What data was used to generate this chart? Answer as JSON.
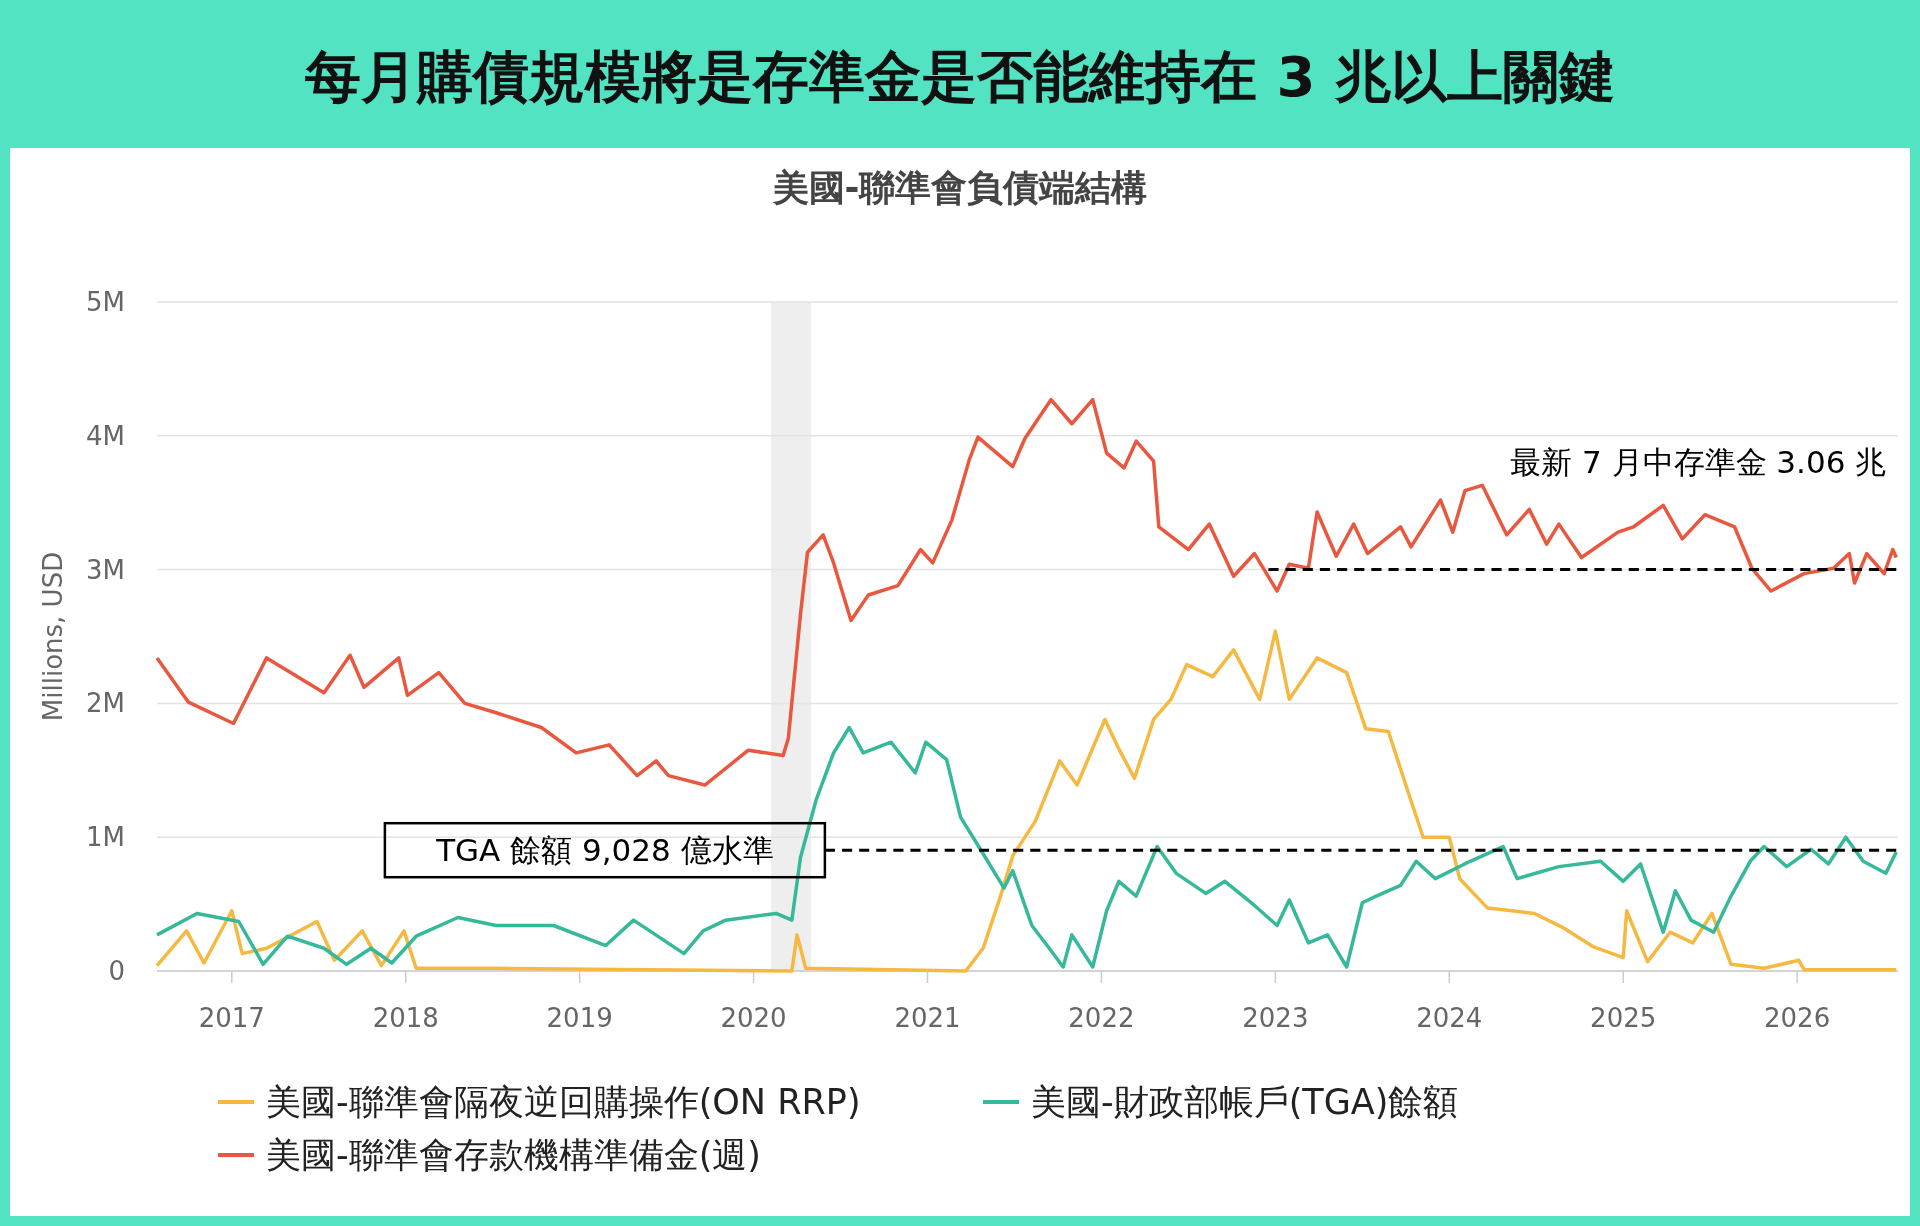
{
  "chart_data": {
    "type": "line",
    "title": "每月購債規模將是存準金是否能維持在 3 兆以上關鍵",
    "subtitle": "美國-聯準會負債端結構",
    "ylabel": "Millions, USD",
    "xlim": [
      2016.57,
      2026.58
    ],
    "xticks": [
      2017,
      2018,
      2019,
      2020,
      2021,
      2022,
      2023,
      2024,
      2025,
      2026
    ],
    "ylim": [
      0,
      5000000
    ],
    "yticks": [
      0,
      {
        "value": 1000000,
        "label": "1M"
      },
      {
        "value": 2000000,
        "label": "2M"
      },
      {
        "value": 3000000,
        "label": "3M"
      },
      {
        "value": 4000000,
        "label": "4M"
      },
      {
        "value": 5000000,
        "label": "5M"
      }
    ],
    "grid": "y",
    "legend": "bottom",
    "line_style": "solid",
    "bands": [
      {
        "axis": "x",
        "from": 2020.1,
        "to": 2020.33,
        "color": "#eeeeee"
      }
    ],
    "annotations": [
      {
        "text": "TGA 餘額 9,028 億水準",
        "x": 2020.41,
        "y": 902800
      },
      {
        "text": "最新 7 月中存準金 3.06 兆",
        "x": 2026.57,
        "y": 3000000
      }
    ],
    "series": [
      {
        "name": "美國-聯準會隔夜逆回購操作(ON RRP)",
        "color": "#f5b942",
        "x": [
          2016.57,
          2016.74,
          2016.84,
          2017.0,
          2017.06,
          2017.2,
          2017.49,
          2017.59,
          2017.75,
          2017.86,
          2017.99,
          2018.06,
          2018.52,
          2020.22,
          2020.25,
          2020.3,
          2021.22,
          2021.32,
          2021.42,
          2021.49,
          2021.62,
          2021.76,
          2021.86,
          2022.02,
          2022.1,
          2022.19,
          2022.3,
          2022.4,
          2022.49,
          2022.64,
          2022.76,
          2022.91,
          2023.0,
          2023.08,
          2023.24,
          2023.41,
          2023.52,
          2023.65,
          2023.75,
          2023.85,
          2024.0,
          2024.06,
          2024.22,
          2024.36,
          2024.49,
          2024.66,
          2024.83,
          2025.0,
          2025.02,
          2025.14,
          2025.27,
          2025.4,
          2025.51,
          2025.62,
          2025.81,
          2026.01,
          2026.04,
          2026.57
        ],
        "values": [
          40000,
          300000,
          60000,
          450000,
          130000,
          170000,
          370000,
          80000,
          300000,
          40000,
          300000,
          20000,
          20000,
          0,
          270000,
          20000,
          0,
          170000,
          560000,
          860000,
          1120000,
          1570000,
          1390000,
          1880000,
          1660000,
          1440000,
          1880000,
          2030000,
          2290000,
          2200000,
          2400000,
          2030000,
          2540000,
          2030000,
          2340000,
          2230000,
          1810000,
          1790000,
          1390000,
          1000000,
          1000000,
          690000,
          470000,
          450000,
          430000,
          320000,
          180000,
          100000,
          450000,
          70000,
          290000,
          210000,
          430000,
          50000,
          20000,
          80000,
          10000,
          10000
        ]
      },
      {
        "name": "美國-財政部帳戶(TGA)餘額",
        "color": "#36b89a",
        "x": [
          2016.57,
          2016.8,
          2017.04,
          2017.18,
          2017.32,
          2017.53,
          2017.66,
          2017.8,
          2017.92,
          2018.06,
          2018.3,
          2018.52,
          2018.85,
          2019.15,
          2019.31,
          2019.6,
          2019.71,
          2019.84,
          2020.13,
          2020.22,
          2020.27,
          2020.36,
          2020.46,
          2020.55,
          2020.63,
          2020.79,
          2020.93,
          2020.99,
          2021.11,
          2021.19,
          2021.29,
          2021.44,
          2021.49,
          2021.6,
          2021.7,
          2021.78,
          2021.83,
          2021.95,
          2022.03,
          2022.1,
          2022.2,
          2022.32,
          2022.43,
          2022.6,
          2022.71,
          2022.88,
          2023.01,
          2023.08,
          2023.19,
          2023.3,
          2023.41,
          2023.5,
          2023.58,
          2023.72,
          2023.81,
          2023.92,
          2024.12,
          2024.31,
          2024.39,
          2024.63,
          2024.87,
          2025.0,
          2025.1,
          2025.23,
          2025.3,
          2025.39,
          2025.52,
          2025.62,
          2025.73,
          2025.81,
          2025.94,
          2026.08,
          2026.18,
          2026.28,
          2026.38,
          2026.51,
          2026.57
        ],
        "values": [
          270000,
          430000,
          370000,
          50000,
          260000,
          170000,
          50000,
          170000,
          60000,
          260000,
          400000,
          340000,
          340000,
          190000,
          380000,
          130000,
          300000,
          380000,
          430000,
          380000,
          850000,
          1280000,
          1630000,
          1820000,
          1630000,
          1710000,
          1480000,
          1710000,
          1580000,
          1150000,
          940000,
          620000,
          750000,
          340000,
          170000,
          30000,
          270000,
          30000,
          450000,
          670000,
          560000,
          930000,
          730000,
          580000,
          670000,
          490000,
          340000,
          530000,
          210000,
          270000,
          30000,
          510000,
          560000,
          640000,
          820000,
          690000,
          820000,
          930000,
          690000,
          780000,
          820000,
          670000,
          800000,
          290000,
          600000,
          380000,
          290000,
          560000,
          820000,
          930000,
          780000,
          910000,
          800000,
          1000000,
          820000,
          730000,
          890000
        ]
      },
      {
        "name": "美國-聯準會存款機構準備金(週)",
        "color": "#e9573f",
        "x": [
          2016.57,
          2016.75,
          2017.01,
          2017.2,
          2017.53,
          2017.68,
          2017.76,
          2017.96,
          2018.01,
          2018.19,
          2018.34,
          2018.52,
          2018.78,
          2018.98,
          2019.17,
          2019.33,
          2019.44,
          2019.51,
          2019.72,
          2019.97,
          2020.17,
          2020.2,
          2020.27,
          2020.31,
          2020.4,
          2020.46,
          2020.56,
          2020.66,
          2020.83,
          2020.96,
          2021.03,
          2021.14,
          2021.24,
          2021.29,
          2021.49,
          2021.56,
          2021.71,
          2021.83,
          2021.95,
          2022.03,
          2022.13,
          2022.2,
          2022.3,
          2022.33,
          2022.5,
          2022.62,
          2022.76,
          2022.88,
          2023.01,
          2023.08,
          2023.19,
          2023.24,
          2023.35,
          2023.45,
          2023.53,
          2023.72,
          2023.78,
          2023.95,
          2024.02,
          2024.09,
          2024.19,
          2024.33,
          2024.46,
          2024.56,
          2024.63,
          2024.76,
          2024.97,
          2025.06,
          2025.23,
          2025.34,
          2025.47,
          2025.64,
          2025.74,
          2025.85,
          2026.04,
          2026.21,
          2026.3,
          2026.33,
          2026.4,
          2026.5,
          2026.55,
          2026.57
        ],
        "values": [
          2340000,
          2010000,
          1850000,
          2340000,
          2080000,
          2360000,
          2120000,
          2340000,
          2060000,
          2230000,
          2000000,
          1930000,
          1820000,
          1630000,
          1690000,
          1460000,
          1570000,
          1460000,
          1390000,
          1650000,
          1610000,
          1740000,
          2670000,
          3130000,
          3260000,
          3050000,
          2620000,
          2810000,
          2880000,
          3150000,
          3050000,
          3370000,
          3820000,
          3990000,
          3770000,
          3980000,
          4270000,
          4090000,
          4270000,
          3870000,
          3760000,
          3960000,
          3810000,
          3320000,
          3150000,
          3340000,
          2950000,
          3120000,
          2840000,
          3040000,
          3010000,
          3430000,
          3100000,
          3340000,
          3120000,
          3320000,
          3170000,
          3520000,
          3280000,
          3590000,
          3630000,
          3260000,
          3450000,
          3190000,
          3340000,
          3090000,
          3280000,
          3320000,
          3480000,
          3230000,
          3410000,
          3320000,
          3010000,
          2840000,
          2970000,
          3010000,
          3120000,
          2900000,
          3120000,
          2970000,
          3150000,
          3090000
        ]
      },
      {
        "color": "#000000",
        "line_style": "dashed",
        "x": [
          2020.41,
          2026.57
        ],
        "values": [
          902800,
          902800
        ]
      },
      {
        "color": "#000000",
        "line_style": "dashed",
        "x": [
          2022.96,
          2026.57
        ],
        "values": [
          3000000,
          3000000
        ]
      }
    ]
  }
}
